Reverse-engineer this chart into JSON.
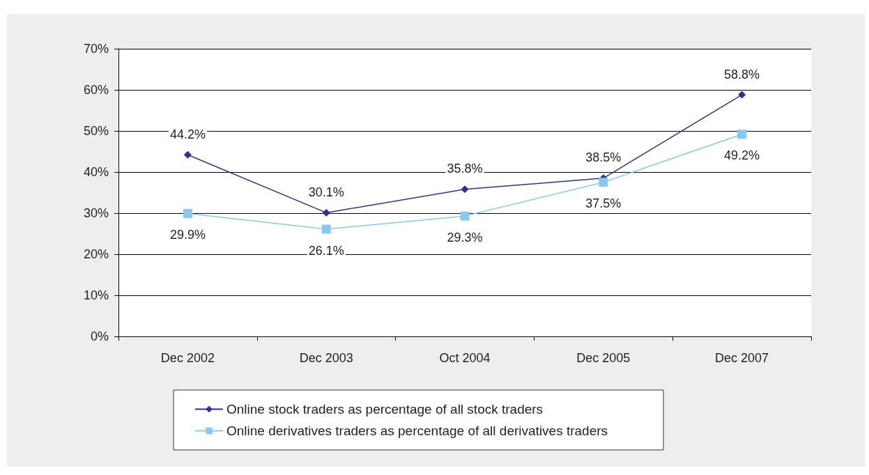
{
  "chart_data": {
    "type": "line",
    "categories": [
      "Dec 2002",
      "Dec 2003",
      "Oct 2004",
      "Dec 2005",
      "Dec 2007"
    ],
    "series": [
      {
        "name": "Online stock traders as percentage of all stock traders",
        "color": "#2e3192",
        "marker": "diamond",
        "values": [
          44.2,
          30.1,
          35.8,
          38.5,
          58.8
        ],
        "value_labels": [
          "44.2%",
          "30.1%",
          "35.8%",
          "38.5%",
          "58.8%"
        ]
      },
      {
        "name": "Online derivatives traders as percentage of all derivatives traders",
        "color": "#87c8ee",
        "marker": "square",
        "values": [
          29.9,
          26.1,
          29.3,
          37.5,
          49.2
        ],
        "value_labels": [
          "29.9%",
          "26.1%",
          "29.3%",
          "37.5%",
          "49.2%"
        ]
      }
    ],
    "ylim": [
      0,
      70
    ],
    "yticks": [
      {
        "value": 0,
        "label": "0%"
      },
      {
        "value": 10,
        "label": "10%"
      },
      {
        "value": 20,
        "label": "20%"
      },
      {
        "value": 30,
        "label": "30%"
      },
      {
        "value": 40,
        "label": "40%"
      },
      {
        "value": 50,
        "label": "50%"
      },
      {
        "value": 60,
        "label": "60%"
      },
      {
        "value": 70,
        "label": "70%"
      }
    ],
    "grid": "y",
    "legend": "bottom"
  }
}
